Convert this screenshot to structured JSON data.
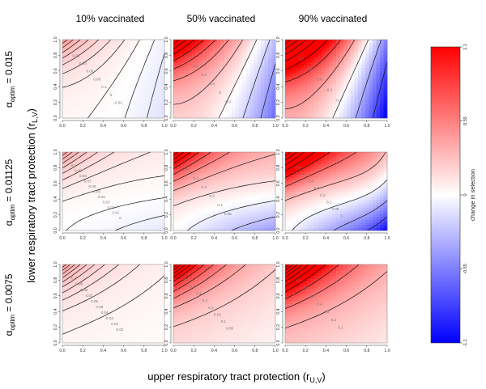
{
  "figure": {
    "column_titles": [
      "10% vaccinated",
      "50% vaccinated",
      "90% vaccinated"
    ],
    "row_labels": [
      {
        "alpha": "α",
        "sub": "optim",
        "value": " = 0.015"
      },
      {
        "alpha": "α",
        "sub": "optim",
        "value": " = 0.01125"
      },
      {
        "alpha": "α",
        "sub": "optim",
        "value": " = 0.0075"
      }
    ],
    "x_axis_title": {
      "main": "upper respiratory tract protection (r",
      "sub": "U,V",
      "end": ")"
    },
    "y_axis_title": {
      "main": "lower respiratory tract protection (r",
      "sub": "L,V",
      "end": ")"
    }
  },
  "chart_data": {
    "type": "heatmap",
    "panel_grid": {
      "rows": 3,
      "cols": 3
    },
    "xlim": [
      0,
      1
    ],
    "ylim": [
      0,
      1
    ],
    "x_ticks": [
      "0.0",
      "0.2",
      "0.4",
      "0.6",
      "0.8",
      "1.0"
    ],
    "y_ticks": [
      "0.0",
      "0.2",
      "0.4",
      "0.6",
      "0.8",
      "1.0"
    ],
    "colorbar": {
      "label": "change in selection",
      "range": [
        -1.1,
        1.1
      ],
      "ticks": [
        "1.1",
        "0.55",
        "0",
        "-0.55",
        "-1.1"
      ],
      "low_color": "#0000ff",
      "mid_color": "#ffffff",
      "high_color": "#ff0000"
    },
    "panels": [
      {
        "row": 0,
        "col": 0,
        "vaccinated": "10%",
        "alpha_optim": 0.015,
        "shape": "tilt",
        "base": 0.055,
        "slope": 0.17,
        "gain": 0.36,
        "contour_levels": [
          0.02,
          0.04,
          0.06,
          0.08,
          0.1,
          0.12,
          0.14,
          0.16
        ],
        "contour_labels": [
          "0.02",
          "0.04",
          "0.06",
          "0.08",
          "0.1",
          "0",
          "-0.02"
        ]
      },
      {
        "row": 0,
        "col": 1,
        "vaccinated": "50%",
        "alpha_optim": 0.015,
        "shape": "tilt",
        "base": 0.3,
        "slope": 0.85,
        "gain": 1.35,
        "contour_levels": [
          0.1,
          0.2,
          0.3,
          0.4,
          0.5,
          0.6
        ],
        "contour_labels": [
          "0.1",
          "0.2",
          "0.3",
          "0.4",
          "0",
          "-0.1"
        ]
      },
      {
        "row": 0,
        "col": 2,
        "vaccinated": "90%",
        "alpha_optim": 0.015,
        "shape": "tilt",
        "base": 0.5,
        "slope": 1.5,
        "gain": 2.3,
        "contour_labels": [
          "0.2",
          "0.4",
          "0.6",
          "-0.2",
          "-0.4"
        ]
      },
      {
        "row": 1,
        "col": 0,
        "vaccinated": "10%",
        "alpha_optim": 0.01125,
        "shape": "mid",
        "base": 0.07,
        "slope": 0.1,
        "gain": 0.36,
        "contour_labels": [
          "0.1",
          "0.09",
          "0.08",
          "0.07",
          "0.06",
          "0.05",
          "0.04",
          "0.03",
          "0.02",
          "0.01",
          "0"
        ]
      },
      {
        "row": 1,
        "col": 1,
        "vaccinated": "50%",
        "alpha_optim": 0.01125,
        "shape": "mid",
        "base": 0.28,
        "slope": 0.45,
        "gain": 1.4,
        "contour_labels": [
          "0.5",
          "0.4",
          "0.3",
          "0.2",
          "0.1",
          "0.05"
        ]
      },
      {
        "row": 1,
        "col": 2,
        "vaccinated": "90%",
        "alpha_optim": 0.01125,
        "shape": "mid",
        "base": 0.42,
        "slope": 0.85,
        "gain": 2.3,
        "contour_labels": [
          "0.8",
          "0.6",
          "0.4",
          "0.3",
          "0.2",
          "0.1",
          "0.05",
          "0"
        ]
      },
      {
        "row": 2,
        "col": 0,
        "vaccinated": "10%",
        "alpha_optim": 0.0075,
        "shape": "floor",
        "base": 0.09,
        "slope": 0.015,
        "gain": 0.34,
        "contour_labels": [
          "0.1",
          "0.09",
          "0.08",
          "0.07",
          "0.06",
          "0.05",
          "0.04",
          "0.03",
          "0.02",
          "0.02"
        ]
      },
      {
        "row": 2,
        "col": 1,
        "vaccinated": "50%",
        "alpha_optim": 0.0075,
        "shape": "floor",
        "base": 0.3,
        "slope": 0.05,
        "gain": 1.45,
        "contour_labels": [
          "0.6",
          "0.5",
          "0.4",
          "0.3",
          "0.2",
          "0.15",
          "0.1",
          "0.05"
        ]
      },
      {
        "row": 2,
        "col": 2,
        "vaccinated": "90%",
        "alpha_optim": 0.0075,
        "shape": "floor",
        "base": 0.5,
        "slope": 0.08,
        "gain": 2.25,
        "contour_labels": [
          "0.8",
          "0.6",
          "0.5",
          "0.4",
          "0.3",
          "0.2",
          "0.1"
        ]
      }
    ]
  }
}
